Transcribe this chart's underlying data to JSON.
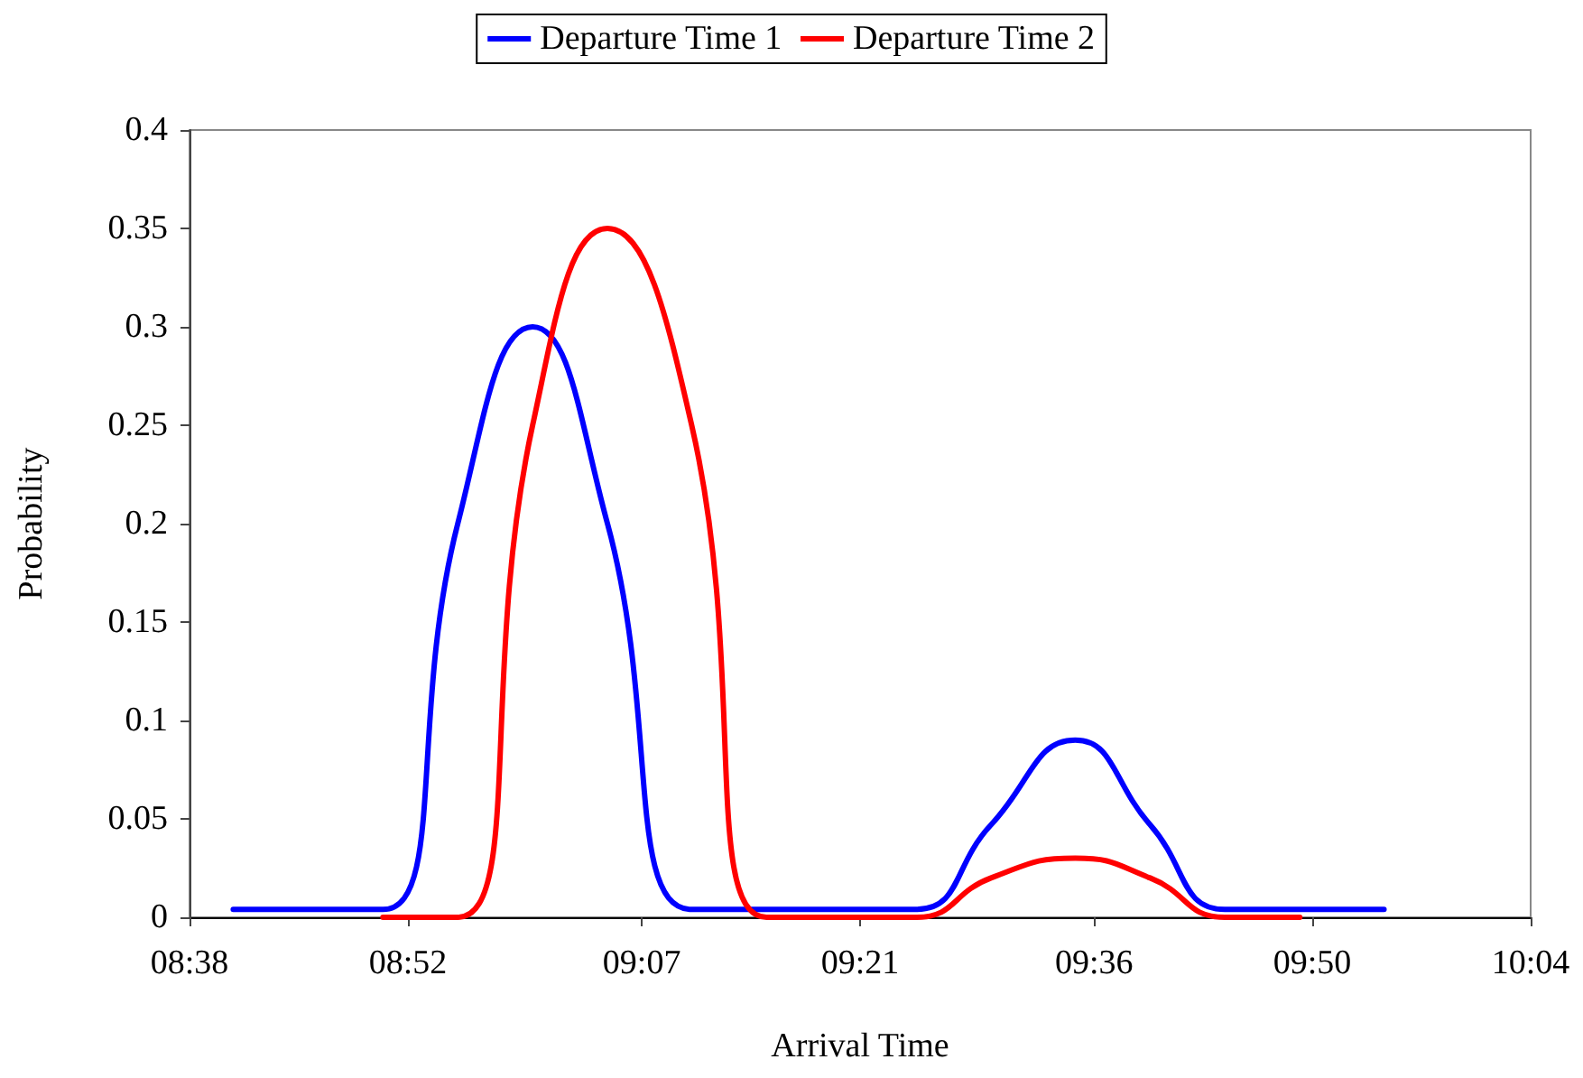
{
  "chart_data": {
    "type": "line",
    "xlabel": "Arrival Time",
    "ylabel": "Probability",
    "x": [
      8.68,
      8.76,
      8.84,
      8.92,
      9.0,
      9.08,
      9.17,
      9.25,
      9.33,
      9.41,
      9.49,
      9.58,
      9.66,
      9.74,
      9.82,
      9.91
    ],
    "series": [
      {
        "name": "Departure Time 1",
        "color": "#0000ff",
        "values": [
          0.004,
          0.004,
          0.004,
          0.2,
          0.3,
          0.2,
          0.004,
          0.004,
          0.004,
          0.004,
          0.047,
          0.09,
          0.047,
          0.004,
          0.004,
          0.004
        ]
      },
      {
        "name": "Departure Time 2",
        "color": "#ff0000",
        "values": [
          null,
          null,
          0,
          0,
          0.25,
          0.35,
          0.25,
          0,
          0,
          0,
          0.02,
          0.03,
          0.02,
          0,
          0,
          null
        ]
      }
    ],
    "xlim": [
      8.6333,
      10.0667
    ],
    "xticks": [
      {
        "value": 8.6333,
        "label": "08:38"
      },
      {
        "value": 8.8667,
        "label": "08:52"
      },
      {
        "value": 9.1167,
        "label": "09:07"
      },
      {
        "value": 9.35,
        "label": "09:21"
      },
      {
        "value": 9.6,
        "label": "09:36"
      },
      {
        "value": 9.8333,
        "label": "09:50"
      },
      {
        "value": 10.0667,
        "label": "10:04"
      }
    ],
    "ylim": [
      0,
      0.4
    ],
    "yticks": [
      0,
      0.05,
      0.1,
      0.15,
      0.2,
      0.25,
      0.3,
      0.35,
      0.4
    ],
    "grid": false,
    "legend": "top",
    "marker": "none",
    "line_style": "solid"
  }
}
